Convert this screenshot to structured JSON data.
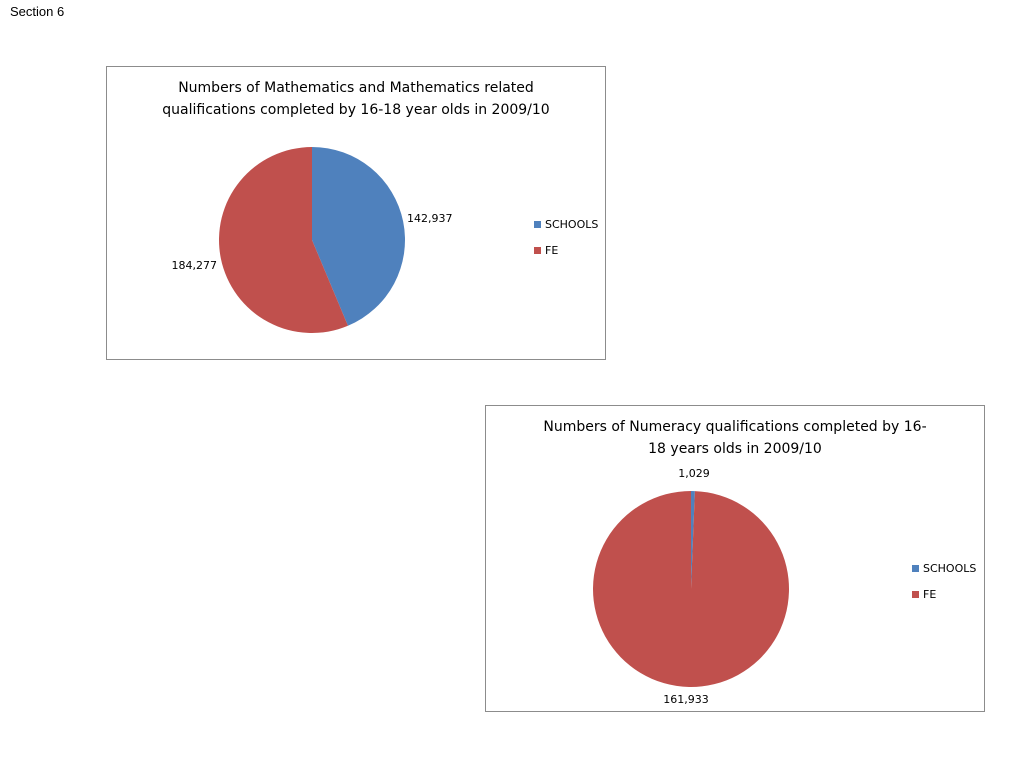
{
  "page": {
    "section_label": "Section 6"
  },
  "chart_data": [
    {
      "type": "pie",
      "title": "Numbers of Mathematics and  Mathematics related\nqualifications completed by 16-18 year olds in 2009/10",
      "categories": [
        "SCHOOLS",
        "FE"
      ],
      "values": [
        142937,
        184277
      ],
      "data_labels": [
        "142,937",
        "184,277"
      ],
      "colors": [
        "#4f81bd",
        "#c0504d"
      ],
      "legend_position": "right"
    },
    {
      "type": "pie",
      "title": "Numbers of Numeracy qualifications  completed by 16-\n18 years olds in 2009/10",
      "categories": [
        "SCHOOLS",
        "FE"
      ],
      "values": [
        1029,
        161933
      ],
      "data_labels": [
        "1,029",
        "161,933"
      ],
      "colors": [
        "#4f81bd",
        "#c0504d"
      ],
      "legend_position": "right"
    }
  ]
}
